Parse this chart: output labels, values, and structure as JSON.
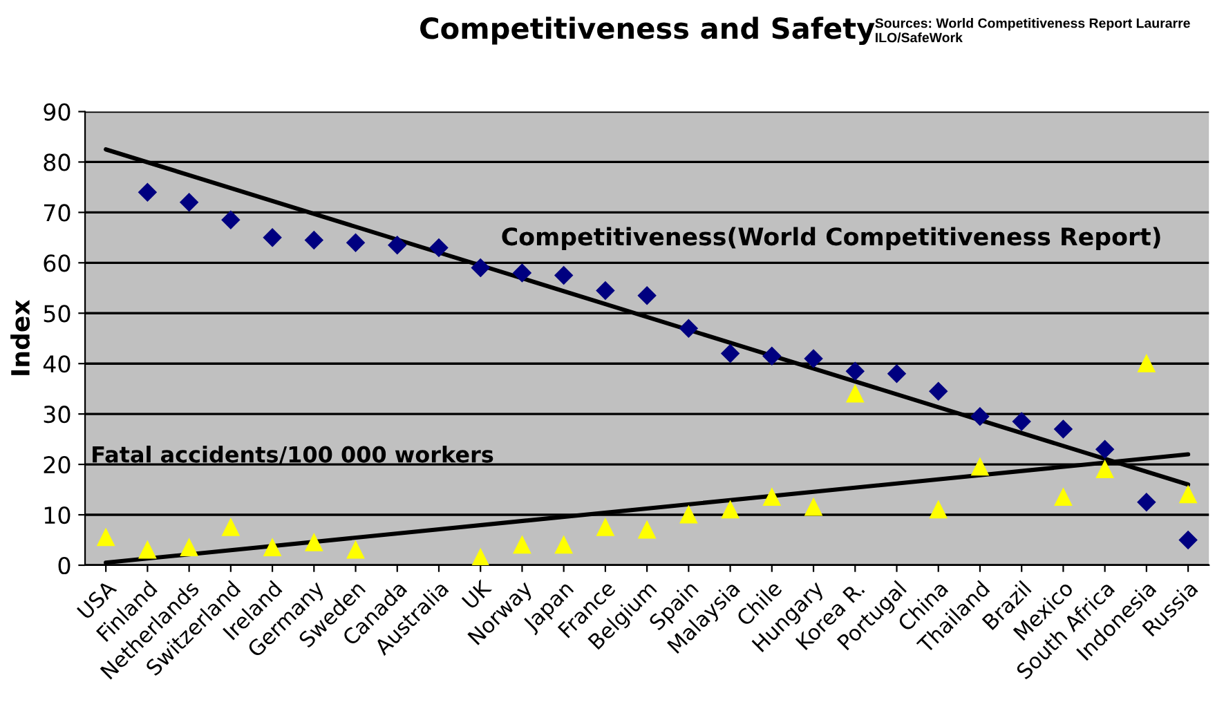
{
  "chart_data": {
    "type": "scatter",
    "title": "Competitiveness and Safety",
    "ylabel": "Index",
    "annotations": [
      "Sources: World Competitiveness Report Laurarre\nILO/SafeWork",
      "Competitiveness(World Competitiveness Report)",
      "Fatal accidents/100 000 workers"
    ],
    "categories": [
      "USA",
      "Finland",
      "Netherlands",
      "Switzerland",
      "Ireland",
      "Germany",
      "Sweden",
      "Canada",
      "Australia",
      "UK",
      "Norway",
      "Japan",
      "France",
      "Belgium",
      "Spain",
      "Malaysia",
      "Chile",
      "Hungary",
      "Korea R.",
      "Portugal",
      "China",
      "Thailand",
      "Brazil",
      "Mexico",
      "South Africa",
      "Indonesia",
      "Russia"
    ],
    "series": [
      {
        "marker": "diamond",
        "color": "#000080",
        "values": [
          null,
          74,
          72,
          68.5,
          65,
          64.5,
          64,
          63.5,
          63,
          59,
          58,
          57.5,
          54.5,
          53.5,
          47,
          42,
          41.5,
          41,
          38.5,
          38,
          34.5,
          29.5,
          28.5,
          27,
          23,
          12.5,
          5
        ]
      },
      {
        "marker": "triangle",
        "color": "#ffff00",
        "values": [
          5.5,
          3,
          3.5,
          7.5,
          3.5,
          4.5,
          3,
          null,
          null,
          1.5,
          4,
          4,
          7.5,
          7,
          10,
          11,
          13.5,
          11.5,
          34,
          null,
          11,
          19.5,
          null,
          13.5,
          19,
          40,
          14
        ]
      },
      {
        "type": "line",
        "color": "#000000",
        "x": [
          "USA",
          "Russia"
        ],
        "values": [
          82.5,
          16
        ]
      },
      {
        "type": "line",
        "color": "#000000",
        "x": [
          "USA",
          "Russia"
        ],
        "values": [
          0.5,
          22
        ]
      }
    ],
    "ylim": [
      0,
      90
    ],
    "yticks": [
      0,
      10,
      20,
      30,
      40,
      50,
      60,
      70,
      80,
      90
    ],
    "grid": "y",
    "legend": false
  }
}
